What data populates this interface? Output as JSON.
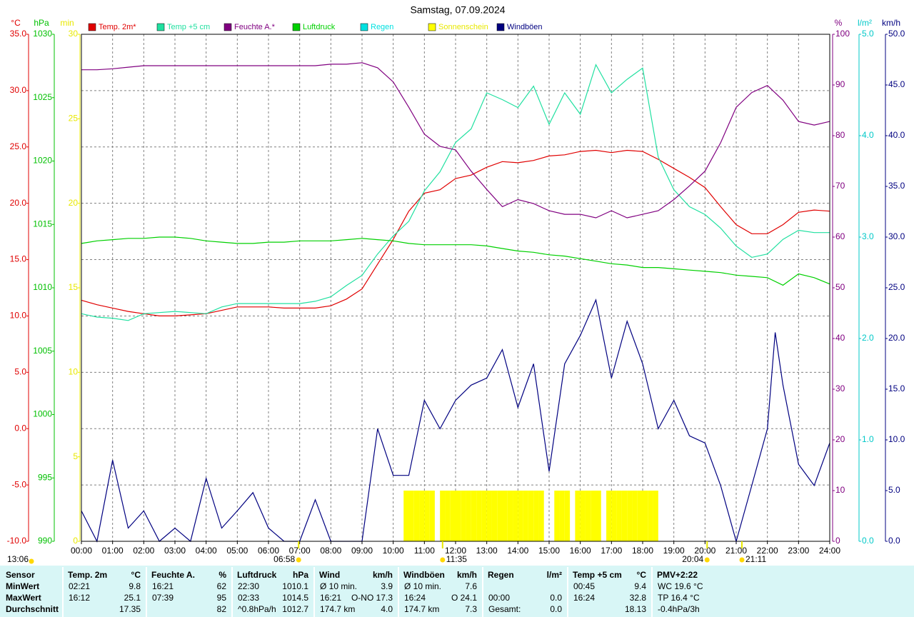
{
  "chart_data": {
    "type": "line",
    "title": "Samstag, 07.09.2024",
    "grid": true,
    "xlim": [
      0,
      1440
    ],
    "xticks": [
      {
        "value": 0,
        "label": "00:00"
      },
      {
        "value": 60,
        "label": "01:00"
      },
      {
        "value": 120,
        "label": "02:00"
      },
      {
        "value": 180,
        "label": "03:00"
      },
      {
        "value": 240,
        "label": "04:00"
      },
      {
        "value": 300,
        "label": "05:00"
      },
      {
        "value": 360,
        "label": "06:00"
      },
      {
        "value": 420,
        "label": "07:00"
      },
      {
        "value": 480,
        "label": "08:00"
      },
      {
        "value": 540,
        "label": "09:00"
      },
      {
        "value": 600,
        "label": "10:00"
      },
      {
        "value": 660,
        "label": "11:00"
      },
      {
        "value": 720,
        "label": "12:00"
      },
      {
        "value": 780,
        "label": "13:00"
      },
      {
        "value": 840,
        "label": "14:00"
      },
      {
        "value": 900,
        "label": "15:00"
      },
      {
        "value": 960,
        "label": "16:00"
      },
      {
        "value": 1020,
        "label": "17:00"
      },
      {
        "value": 1080,
        "label": "18:00"
      },
      {
        "value": 1140,
        "label": "19:00"
      },
      {
        "value": 1200,
        "label": "20:00"
      },
      {
        "value": 1260,
        "label": "21:00"
      },
      {
        "value": 1320,
        "label": "22:00"
      },
      {
        "value": 1380,
        "label": "23:00"
      },
      {
        "value": 1440,
        "label": "24:00"
      }
    ],
    "axes": [
      {
        "label": "°C",
        "color": "#e00000",
        "side": "left",
        "lim": [
          -10,
          35
        ],
        "ticks": [
          {
            "value": -10,
            "label": "-10.0"
          },
          {
            "value": -5,
            "label": "-5.0"
          },
          {
            "value": 0,
            "label": "0.0"
          },
          {
            "value": 5,
            "label": "5.0"
          },
          {
            "value": 10,
            "label": "10.0"
          },
          {
            "value": 15,
            "label": "15.0"
          },
          {
            "value": 20,
            "label": "20.0"
          },
          {
            "value": 25,
            "label": "25.0"
          },
          {
            "value": 30,
            "label": "30.0"
          },
          {
            "value": 35,
            "label": "35.0"
          }
        ]
      },
      {
        "label": "hPa",
        "color": "#00c000",
        "side": "left",
        "lim": [
          990,
          1030
        ],
        "ticks": [
          990,
          995,
          1000,
          1005,
          1010,
          1015,
          1020,
          1025,
          1030
        ]
      },
      {
        "label": "min",
        "color": "#e8e800",
        "side": "left",
        "lim": [
          0,
          30
        ],
        "ticks": [
          0,
          5,
          10,
          15,
          20,
          25,
          30
        ]
      },
      {
        "label": "%",
        "color": "#800080",
        "side": "right",
        "lim": [
          0,
          100
        ],
        "ticks": [
          0,
          10,
          20,
          30,
          40,
          50,
          60,
          70,
          80,
          90,
          100
        ]
      },
      {
        "label": "l/m²",
        "color": "#00c8c8",
        "side": "right",
        "lim": [
          0,
          5
        ],
        "ticks": [
          {
            "value": 0,
            "label": "0.0"
          },
          {
            "value": 1,
            "label": "1.0"
          },
          {
            "value": 2,
            "label": "2.0"
          },
          {
            "value": 3,
            "label": "3.0"
          },
          {
            "value": 4,
            "label": "4.0"
          },
          {
            "value": 5,
            "label": "5.0"
          }
        ]
      },
      {
        "label": "km/h",
        "color": "#000080",
        "side": "right",
        "lim": [
          0,
          50
        ],
        "ticks": [
          {
            "value": 0,
            "label": "0.0"
          },
          {
            "value": 5,
            "label": "5.0"
          },
          {
            "value": 10,
            "label": "10.0"
          },
          {
            "value": 15,
            "label": "15.0"
          },
          {
            "value": 20,
            "label": "20.0"
          },
          {
            "value": 25,
            "label": "25.0"
          },
          {
            "value": 30,
            "label": "30.0"
          },
          {
            "value": 35,
            "label": "35.0"
          },
          {
            "value": 40,
            "label": "40.0"
          },
          {
            "value": 45,
            "label": "45.0"
          },
          {
            "value": 50,
            "label": "50.0"
          }
        ]
      }
    ],
    "x": [
      0,
      30,
      60,
      90,
      120,
      150,
      180,
      210,
      240,
      270,
      300,
      330,
      360,
      390,
      420,
      450,
      480,
      510,
      540,
      570,
      600,
      630,
      660,
      690,
      720,
      750,
      780,
      810,
      840,
      870,
      900,
      930,
      960,
      990,
      1020,
      1050,
      1080,
      1110,
      1140,
      1170,
      1200,
      1230,
      1260,
      1290,
      1320,
      1350,
      1380,
      1410,
      1440
    ],
    "series": [
      {
        "name": "Temp. 2m*",
        "color": "#e00000",
        "axis": 0,
        "values": [
          11.4,
          11.0,
          10.7,
          10.4,
          10.2,
          10.0,
          10.0,
          10.1,
          10.2,
          10.5,
          10.8,
          10.8,
          10.8,
          10.7,
          10.7,
          10.7,
          10.9,
          11.5,
          12.4,
          14.6,
          16.8,
          19.3,
          20.9,
          21.2,
          22.2,
          22.5,
          23.2,
          23.7,
          23.6,
          23.8,
          24.2,
          24.3,
          24.6,
          24.7,
          24.5,
          24.7,
          24.6,
          23.9,
          23.1,
          22.3,
          21.4,
          19.7,
          18.1,
          17.3,
          17.3,
          18.1,
          19.2,
          19.4,
          19.3
        ]
      },
      {
        "name": "Temp +5 cm",
        "color": "#20e0a0",
        "axis": 0,
        "values": [
          10.2,
          9.9,
          9.8,
          9.6,
          10.2,
          10.3,
          10.4,
          10.3,
          10.2,
          10.8,
          11.1,
          11.1,
          11.1,
          11.1,
          11.1,
          11.3,
          11.7,
          12.7,
          13.6,
          15.5,
          17.1,
          18.4,
          21.1,
          22.8,
          25.4,
          26.6,
          29.8,
          29.2,
          28.5,
          30.4,
          27.0,
          29.8,
          27.9,
          32.3,
          29.8,
          31.0,
          32.0,
          24.1,
          21.2,
          19.7,
          19.0,
          17.8,
          16.2,
          15.2,
          15.5,
          16.8,
          17.6,
          17.4,
          17.4
        ]
      },
      {
        "name": "Feuchte A.*",
        "color": "#800080",
        "axis": 3,
        "values": [
          93.0,
          93.0,
          93.2,
          93.5,
          93.8,
          93.8,
          93.8,
          93.8,
          93.8,
          93.8,
          93.8,
          93.8,
          93.8,
          93.8,
          93.8,
          93.8,
          94.1,
          94.1,
          94.4,
          93.4,
          90.6,
          85.6,
          80.3,
          77.9,
          77.2,
          73.0,
          69.4,
          66.0,
          67.4,
          66.6,
          65.2,
          64.5,
          64.5,
          63.8,
          65.2,
          63.8,
          64.5,
          65.2,
          67.4,
          70.1,
          73.0,
          78.6,
          85.6,
          88.5,
          89.9,
          87.0,
          82.8,
          82.1,
          82.8
        ]
      },
      {
        "name": "Luftdruck",
        "color": "#00d000",
        "axis": 1,
        "values": [
          1013.5,
          1013.7,
          1013.8,
          1013.9,
          1013.9,
          1014.0,
          1014.0,
          1013.9,
          1013.7,
          1013.6,
          1013.5,
          1013.5,
          1013.6,
          1013.6,
          1013.7,
          1013.7,
          1013.7,
          1013.8,
          1013.9,
          1013.8,
          1013.7,
          1013.5,
          1013.4,
          1013.4,
          1013.4,
          1013.4,
          1013.3,
          1013.1,
          1012.9,
          1012.8,
          1012.6,
          1012.5,
          1012.3,
          1012.1,
          1011.9,
          1011.8,
          1011.6,
          1011.6,
          1011.5,
          1011.4,
          1011.3,
          1011.2,
          1011.0,
          1010.9,
          1010.8,
          1010.2,
          1011.1,
          1010.8,
          1010.3
        ]
      },
      {
        "name": "Regen",
        "color": "#00e0e0",
        "axis": 4
      },
      {
        "name": "Sonnenschein",
        "color": "#ffff00",
        "axis": 2,
        "type": "bar",
        "x": [
          620,
          630,
          640,
          650,
          660,
          670,
          690,
          700,
          710,
          720,
          730,
          740,
          750,
          760,
          770,
          780,
          790,
          800,
          810,
          820,
          830,
          840,
          850,
          860,
          870,
          880,
          910,
          920,
          930,
          950,
          960,
          970,
          980,
          990,
          1010,
          1020,
          1030,
          1040,
          1050,
          1060,
          1070,
          1080,
          1090,
          1100
        ],
        "values": [
          3,
          3,
          3,
          3,
          3,
          3,
          3,
          3,
          3,
          3,
          3,
          3,
          3,
          3,
          3,
          3,
          3,
          3,
          3,
          3,
          3,
          3,
          3,
          3,
          3,
          3,
          3,
          3,
          3,
          3,
          3,
          3,
          3,
          3,
          3,
          3,
          3,
          3,
          3,
          3,
          3,
          3,
          3,
          3
        ]
      },
      {
        "name": "Windböen",
        "color": "#000080",
        "axis": 5,
        "x": [
          0,
          30,
          60,
          90,
          120,
          150,
          180,
          210,
          240,
          270,
          300,
          330,
          360,
          390,
          420,
          450,
          480,
          510,
          540,
          570,
          600,
          630,
          660,
          690,
          720,
          750,
          780,
          810,
          840,
          870,
          900,
          930,
          960,
          990,
          1020,
          1050,
          1080,
          1110,
          1140,
          1170,
          1200,
          1230,
          1260,
          1290,
          1320,
          1335,
          1350,
          1380,
          1410,
          1440
        ],
        "values": [
          3.0,
          0,
          8.0,
          1.3,
          3.0,
          0,
          1.3,
          0,
          6.2,
          1.3,
          3.0,
          4.8,
          1.3,
          0,
          0,
          4.1,
          0,
          0,
          0,
          11.1,
          6.5,
          6.5,
          13.9,
          11.1,
          13.9,
          15.4,
          16.1,
          18.9,
          13.2,
          17.5,
          6.9,
          17.5,
          20.3,
          23.8,
          16.1,
          21.7,
          17.5,
          11.1,
          13.9,
          10.4,
          9.7,
          5.5,
          0,
          5.5,
          11.1,
          20.6,
          15.4,
          7.6,
          5.5,
          9.7
        ]
      }
    ],
    "markers": [
      {
        "x": 418,
        "label": "06:58"
      },
      {
        "x": 695,
        "label": "11:35"
      },
      {
        "x": 1204,
        "label": "20:04"
      },
      {
        "x": 1271,
        "label": "21:11"
      }
    ],
    "moon_label": "13:06"
  },
  "table": {
    "columns": [
      {
        "title": "Sensor"
      },
      {
        "title": "Temp. 2m",
        "unit": "°C"
      },
      {
        "title": "Feuchte A.",
        "unit": "%"
      },
      {
        "title": "Luftdruck",
        "unit": "hPa"
      },
      {
        "title": "Wind",
        "unit": "km/h"
      },
      {
        "title": "Windböen",
        "unit": "km/h"
      },
      {
        "title": "Regen",
        "unit": "l/m²"
      },
      {
        "title": "Temp +5 cm",
        "unit": "°C"
      },
      {
        "title": "PMV+2:22"
      }
    ],
    "rows": [
      {
        "label": "MinWert",
        "cells": [
          {
            "time": "02:21",
            "value": "9.8"
          },
          {
            "time": "16:21",
            "value": "62"
          },
          {
            "time": "22:30",
            "value": "1010.1"
          },
          {
            "time": "Ø 10 min.",
            "value": "3.9"
          },
          {
            "time": "Ø 10 min.",
            "value": "7.6"
          },
          {},
          {
            "time": "00:45",
            "value": "9.4"
          },
          {
            "time": "WC 19.6 °C"
          }
        ]
      },
      {
        "label": "MaxWert",
        "cells": [
          {
            "time": "16:12",
            "value": "25.1"
          },
          {
            "time": "07:39",
            "value": "95"
          },
          {
            "time": "02:33",
            "value": "1014.5"
          },
          {
            "time": "16:21",
            "value": "O-NO 17.3"
          },
          {
            "time": "16:24",
            "value": "O 24.1"
          },
          {
            "time": "00:00",
            "value": "0.0"
          },
          {
            "time": "16:24",
            "value": "32.8"
          },
          {
            "time": "TP 16.4 °C"
          }
        ]
      },
      {
        "label": "Durchschnitt",
        "cells": [
          {
            "value": "17.35"
          },
          {
            "value": "82"
          },
          {
            "time": "^0.8hPa/h",
            "value": "1012.7"
          },
          {
            "time": "174.7 km",
            "value": "4.0"
          },
          {
            "time": "174.7 km",
            "value": "7.3"
          },
          {
            "time": "Gesamt:",
            "value": "0.0"
          },
          {
            "value": "18.13"
          },
          {
            "time": "-0.4hPa/3h"
          }
        ]
      }
    ]
  }
}
